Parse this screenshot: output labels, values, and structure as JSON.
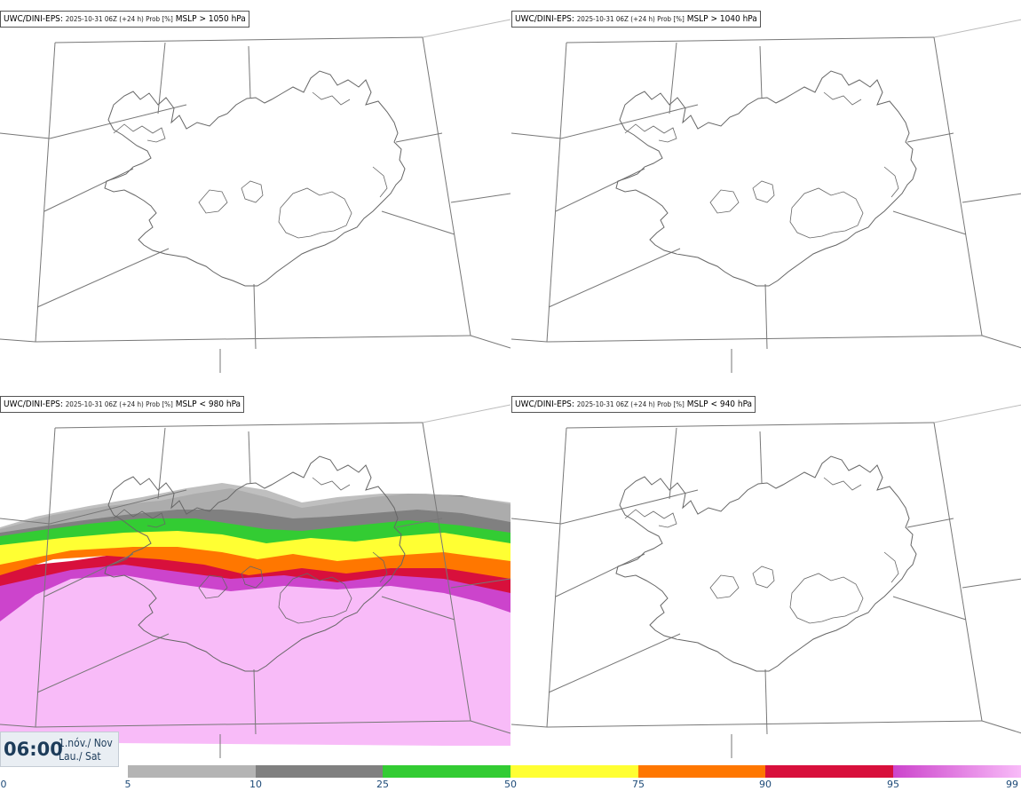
{
  "panels": [
    {
      "model": "UWC/DINI-EPS",
      "run": "2025-10-31 06Z (+24 h) Prob [%]",
      "param": "MSLP > 1050 hPa"
    },
    {
      "model": "UWC/DINI-EPS",
      "run": "2025-10-31 06Z (+24 h) Prob [%]",
      "param": "MSLP > 1040 hPa"
    },
    {
      "model": "UWC/DINI-EPS",
      "run": "2025-10-31 06Z (+24 h) Prob [%]",
      "param": "MSLP < 980 hPa"
    },
    {
      "model": "UWC/DINI-EPS",
      "run": "2025-10-31 06Z (+24 h) Prob [%]",
      "param": "MSLP < 940 hPa"
    }
  ],
  "valid_time": {
    "time": "06:00",
    "date_line1": "1.nóv./ Nov",
    "date_line2": "Lau./ Sat"
  },
  "legend": {
    "ticks": [
      "0",
      "5",
      "10",
      "25",
      "50",
      "75",
      "90",
      "95",
      "99"
    ],
    "bins": [
      {
        "from": 5,
        "to": 10,
        "color": "#b4b4b4"
      },
      {
        "from": 10,
        "to": 25,
        "color": "#808080"
      },
      {
        "from": 25,
        "to": 50,
        "color": "#33cc33"
      },
      {
        "from": 50,
        "to": 75,
        "color": "#ffff33"
      },
      {
        "from": 75,
        "to": 90,
        "color": "#ff7700"
      },
      {
        "from": 90,
        "to": 95,
        "color": "#d8103c"
      },
      {
        "from": 95,
        "to": 99,
        "color": "#cc44cc",
        "gradient_to": "#f8bbf8"
      }
    ]
  },
  "colors": {
    "land_outline": "#666666",
    "grid": "#777777"
  }
}
